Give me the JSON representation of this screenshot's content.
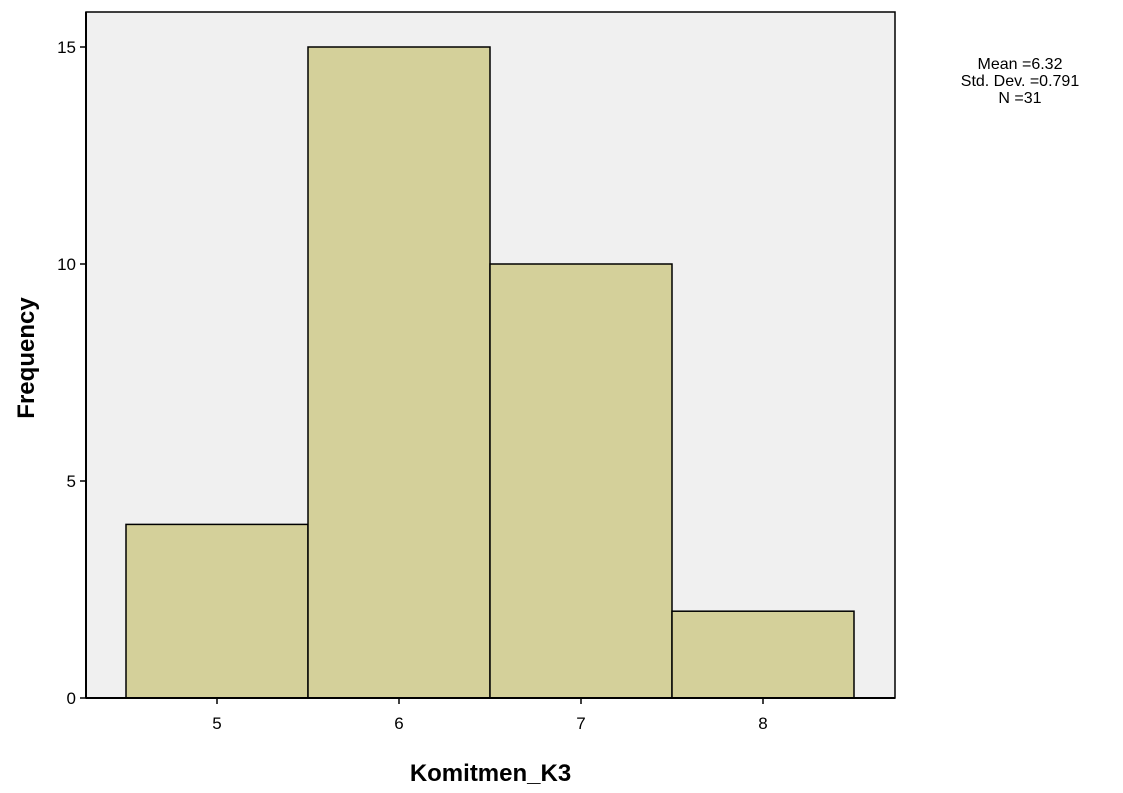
{
  "chart_data": {
    "type": "bar",
    "histogram": true,
    "categories": [
      "5",
      "6",
      "7",
      "8"
    ],
    "values": [
      4,
      15,
      10,
      2
    ],
    "xlabel": "Komitmen_K3",
    "ylabel": "Frequency",
    "ylim": [
      0,
      15
    ],
    "yticks": [
      0,
      5,
      10,
      15
    ],
    "grid": false,
    "bar_color": "#d4d09a",
    "plot_background": "#f0f0f0",
    "stats": {
      "mean": "Mean =6.32",
      "std_dev": "Std. Dev. =0.791",
      "n": "N =31"
    }
  }
}
